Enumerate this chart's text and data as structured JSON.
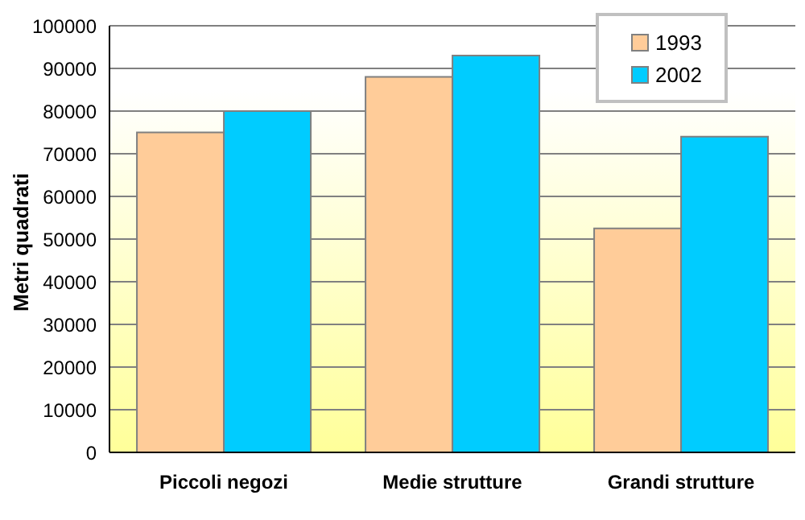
{
  "chart_data": {
    "type": "bar",
    "ylabel": "Metri quadrati",
    "categories": [
      "Piccoli negozi",
      "Medie strutture",
      "Grandi strutture"
    ],
    "series": [
      {
        "name": "1993",
        "color": "#ffcc99",
        "values": [
          75000,
          88000,
          52500
        ]
      },
      {
        "name": "2002",
        "color": "#00ccff",
        "values": [
          80000,
          93000,
          74000
        ]
      }
    ],
    "ylim": [
      0,
      100000
    ],
    "yticks": [
      0,
      10000,
      20000,
      30000,
      40000,
      50000,
      60000,
      70000,
      80000,
      90000,
      100000
    ],
    "grid": "y",
    "legend": "top right"
  }
}
